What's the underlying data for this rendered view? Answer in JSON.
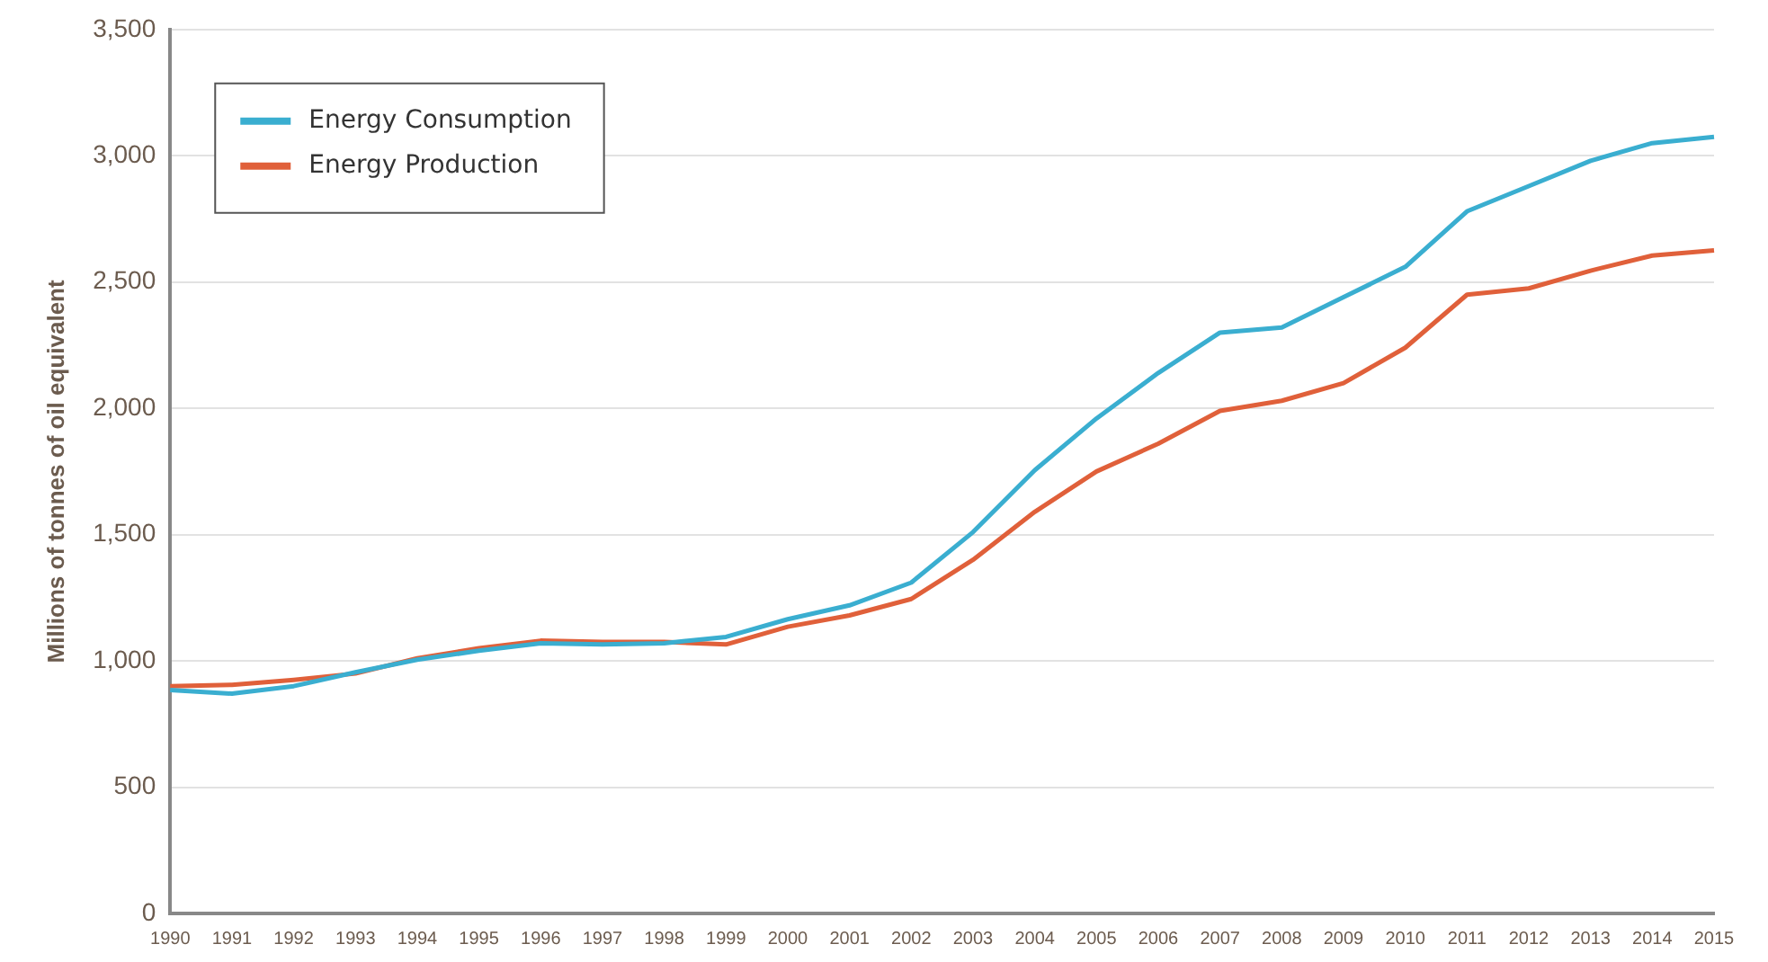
{
  "chart_data": {
    "type": "line",
    "ylabel": "Millions of tonnes of oil equivalent",
    "categories": [
      "1990",
      "1991",
      "1992",
      "1993",
      "1994",
      "1995",
      "1996",
      "1997",
      "1998",
      "1999",
      "2000",
      "2001",
      "2002",
      "2003",
      "2004",
      "2005",
      "2006",
      "2007",
      "2008",
      "2009",
      "2010",
      "2011",
      "2012",
      "2013",
      "2014",
      "2015"
    ],
    "series": [
      {
        "name": "Energy Consumption",
        "color": "#3aaed0",
        "values": [
          885,
          870,
          900,
          955,
          1005,
          1040,
          1070,
          1065,
          1070,
          1095,
          1165,
          1220,
          1310,
          1510,
          1755,
          1960,
          2140,
          2300,
          2320,
          2440,
          2560,
          2780,
          2880,
          2980,
          3050,
          3075
        ]
      },
      {
        "name": "Energy Production",
        "color": "#e0603a",
        "values": [
          900,
          905,
          925,
          950,
          1010,
          1050,
          1080,
          1075,
          1075,
          1065,
          1135,
          1180,
          1245,
          1400,
          1590,
          1750,
          1860,
          1990,
          2030,
          2100,
          2240,
          2450,
          2475,
          2545,
          2605,
          2625
        ]
      }
    ],
    "ylim": [
      0,
      3500
    ],
    "yticks": [
      0,
      500,
      {
        "value": 1000,
        "label": "1,000"
      },
      {
        "value": 1500,
        "label": "1,500"
      },
      {
        "value": 2000,
        "label": "2,000"
      },
      {
        "value": 2500,
        "label": "2,500"
      },
      {
        "value": 3000,
        "label": "3,000"
      },
      {
        "value": 3500,
        "label": "3,500"
      }
    ],
    "grid": "y",
    "legend": "top left",
    "marker": "none",
    "line_style": "solid"
  }
}
